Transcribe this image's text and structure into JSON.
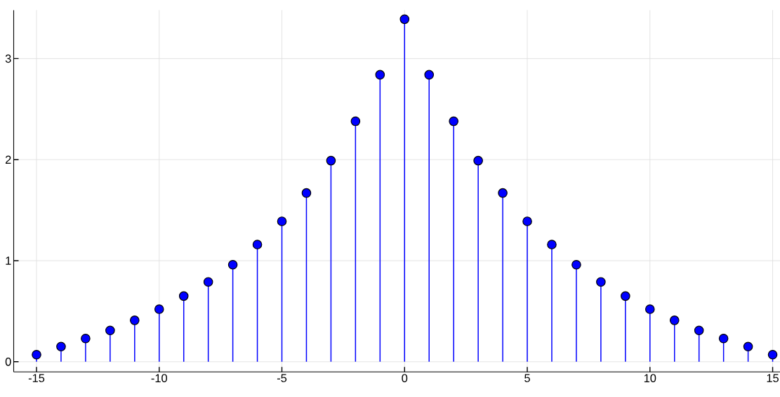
{
  "chart_data": {
    "type": "lollipop",
    "x": [
      -15,
      -14,
      -13,
      -12,
      -11,
      -10,
      -9,
      -8,
      -7,
      -6,
      -5,
      -4,
      -3,
      -2,
      -1,
      0,
      1,
      2,
      3,
      4,
      5,
      6,
      7,
      8,
      9,
      10,
      11,
      12,
      13,
      14,
      15
    ],
    "values": [
      0.07,
      0.15,
      0.23,
      0.31,
      0.41,
      0.52,
      0.65,
      0.79,
      0.96,
      1.16,
      1.39,
      1.67,
      1.99,
      2.38,
      2.84,
      3.39,
      2.84,
      2.38,
      1.99,
      1.67,
      1.39,
      1.16,
      0.96,
      0.79,
      0.65,
      0.52,
      0.41,
      0.31,
      0.23,
      0.15,
      0.07
    ],
    "color": "#0000ff",
    "marker": "circle",
    "grid": true,
    "xlim": [
      -15.93,
      15.3
    ],
    "ylim": [
      -0.1,
      3.48
    ],
    "xticks": [
      -15,
      -10,
      -5,
      0,
      5,
      10,
      15
    ],
    "yticks": [
      0,
      1,
      2,
      3
    ]
  }
}
